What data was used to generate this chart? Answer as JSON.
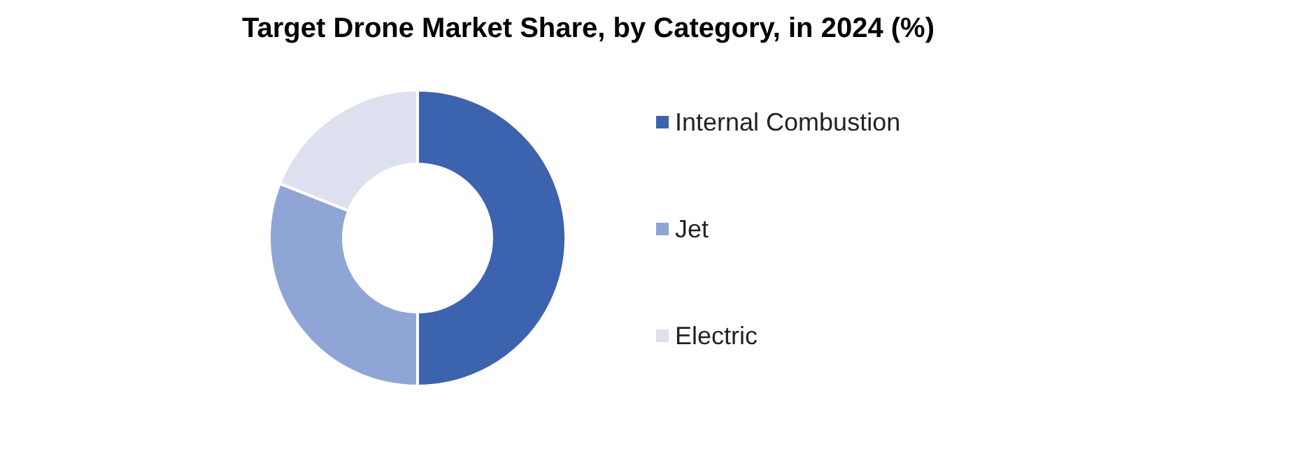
{
  "chart_data": {
    "type": "donut",
    "title": "Target Drone Market Share, by Category, in 2024 (%)",
    "categories": [
      "Internal Combustion",
      "Jet",
      "Electric"
    ],
    "values": [
      50,
      31,
      19
    ],
    "colors": [
      "#3c63ad",
      "#8fa5d5",
      "#dde1ef"
    ],
    "legend": "right"
  }
}
